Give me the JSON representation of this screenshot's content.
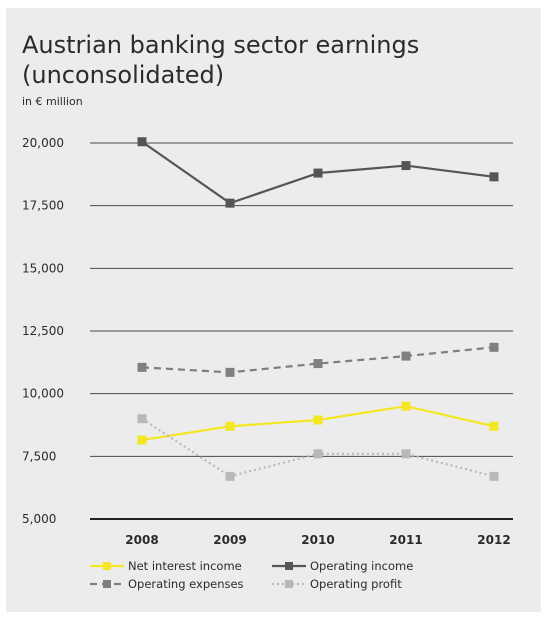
{
  "chart_data": {
    "type": "line",
    "title": "Austrian banking sector earnings\n(unconsolidated)",
    "subtitle": "in € million",
    "xlabel": "",
    "ylabel": "",
    "categories": [
      "2008",
      "2009",
      "2010",
      "2011",
      "2012"
    ],
    "ylim": [
      5000,
      20000
    ],
    "yticks": [
      5000,
      7500,
      10000,
      12500,
      15000,
      17500,
      20000
    ],
    "ytick_labels": [
      "5,000",
      "7,500",
      "10,000",
      "12,500",
      "15,000",
      "17,500",
      "20,000"
    ],
    "grid": true,
    "legend_position": "bottom",
    "series": [
      {
        "name": "Net interest income",
        "values": [
          8150,
          8700,
          8950,
          9500,
          8700
        ],
        "color": "#f5e625",
        "line_style": "solid"
      },
      {
        "name": "Operating income",
        "values": [
          20050,
          17600,
          18800,
          19100,
          18650
        ],
        "color": "#555555",
        "line_style": "solid"
      },
      {
        "name": "Operating expenses",
        "values": [
          11050,
          10850,
          11200,
          11500,
          11850
        ],
        "color": "#7f7f7f",
        "line_style": "dashed"
      },
      {
        "name": "Operating profit",
        "values": [
          9000,
          6700,
          7600,
          7600,
          6700
        ],
        "color": "#b8b8b8",
        "line_style": "dotted"
      }
    ]
  }
}
